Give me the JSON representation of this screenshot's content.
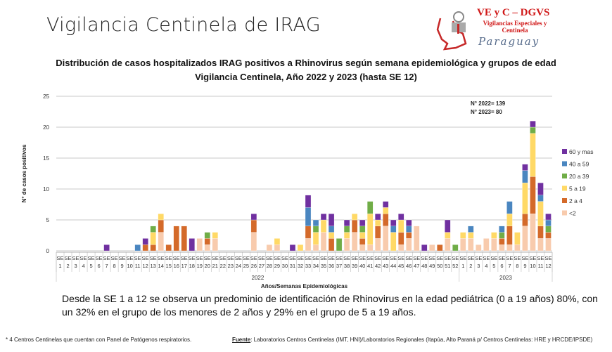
{
  "header": {
    "title": "Vigilancia Centinela de IRAG"
  },
  "logo": {
    "line1": "VE y C – DGVS",
    "line2": "Vigilancias Especiales y Centinela",
    "line3": "Paraguay"
  },
  "chart_data": {
    "type": "bar",
    "stacked": true,
    "title": "Distribución de casos hospitalizados IRAG positivos a Rhinovirus según semana epidemiológica y grupos de edad",
    "subtitle": "Vigilancia Centinela, Año 2022 y 2023 (hasta SE 12)",
    "ylabel": "N° de casos positivos",
    "xlabel": "Años/Semanas Epidemiológicas",
    "ylim": [
      0,
      25
    ],
    "yticks": [
      0,
      5,
      10,
      15,
      20,
      25
    ],
    "grid": true,
    "legend_position": "right",
    "annotations": [
      "N° 2022= 139",
      "N° 2023= 80"
    ],
    "groups": [
      {
        "label": "2022",
        "weeks": 52
      },
      {
        "label": "2023",
        "weeks": 12
      }
    ],
    "category_prefix": "SE",
    "categories": [
      "1",
      "2",
      "3",
      "4",
      "5",
      "6",
      "7",
      "8",
      "9",
      "10",
      "11",
      "12",
      "13",
      "14",
      "15",
      "16",
      "17",
      "18",
      "19",
      "20",
      "21",
      "22",
      "23",
      "24",
      "25",
      "26",
      "27",
      "28",
      "29",
      "30",
      "31",
      "32",
      "33",
      "34",
      "35",
      "36",
      "37",
      "38",
      "39",
      "40",
      "41",
      "42",
      "43",
      "44",
      "45",
      "46",
      "47",
      "48",
      "49",
      "50",
      "51",
      "52",
      "1",
      "2",
      "3",
      "4",
      "5",
      "6",
      "7",
      "8",
      "9",
      "10",
      "11",
      "12"
    ],
    "series": [
      {
        "name": "<2",
        "color": "#F8CBAD",
        "values": [
          0,
          0,
          0,
          0,
          0,
          0,
          0,
          0,
          0,
          0,
          0,
          0,
          0,
          3,
          0,
          0,
          0,
          0,
          2,
          1,
          2,
          0,
          0,
          0,
          0,
          3,
          0,
          1,
          1,
          0,
          0,
          0,
          2,
          1,
          3,
          0,
          0,
          2,
          3,
          1,
          1,
          2,
          4,
          0,
          1,
          2,
          4,
          0,
          1,
          0,
          2,
          0,
          2,
          2,
          1,
          2,
          2,
          1,
          1,
          1,
          4,
          6,
          2,
          2
        ]
      },
      {
        "name": "2 a 4",
        "color": "#D46A2A",
        "values": [
          0,
          0,
          0,
          0,
          0,
          0,
          0,
          0,
          0,
          0,
          0,
          1,
          1,
          2,
          1,
          4,
          4,
          0,
          0,
          1,
          0,
          0,
          0,
          0,
          0,
          2,
          0,
          0,
          0,
          0,
          0,
          0,
          2,
          0,
          0,
          2,
          0,
          0,
          2,
          1,
          0,
          2,
          2,
          0,
          2,
          1,
          0,
          0,
          0,
          1,
          0,
          0,
          0,
          0,
          0,
          0,
          0,
          1,
          3,
          0,
          2,
          6,
          2,
          1
        ]
      },
      {
        "name": "5 a 19",
        "color": "#FFD966",
        "values": [
          0,
          0,
          0,
          0,
          0,
          0,
          0,
          0,
          0,
          0,
          0,
          0,
          2,
          1,
          0,
          0,
          0,
          0,
          0,
          0,
          1,
          0,
          0,
          0,
          0,
          0,
          0,
          0,
          1,
          0,
          0,
          1,
          0,
          2,
          2,
          1,
          0,
          1,
          1,
          1,
          5,
          1,
          1,
          3,
          2,
          0,
          0,
          0,
          0,
          0,
          1,
          0,
          1,
          1,
          0,
          0,
          1,
          0,
          2,
          2,
          5,
          7,
          4,
          0
        ]
      },
      {
        "name": "20 a 39",
        "color": "#70AD47",
        "values": [
          0,
          0,
          0,
          0,
          0,
          0,
          0,
          0,
          0,
          0,
          0,
          0,
          1,
          0,
          0,
          0,
          0,
          0,
          0,
          1,
          0,
          0,
          0,
          0,
          0,
          0,
          0,
          0,
          0,
          0,
          0,
          0,
          0,
          1,
          0,
          0,
          2,
          1,
          0,
          1,
          2,
          0,
          0,
          0,
          0,
          0,
          0,
          0,
          0,
          0,
          0,
          1,
          0,
          0,
          0,
          0,
          0,
          1,
          0,
          0,
          0,
          1,
          0,
          1
        ]
      },
      {
        "name": "40 a 59",
        "color": "#4A86C0",
        "values": [
          0,
          0,
          0,
          0,
          0,
          0,
          0,
          0,
          0,
          0,
          1,
          0,
          0,
          0,
          0,
          0,
          0,
          0,
          0,
          0,
          0,
          0,
          0,
          0,
          0,
          0,
          0,
          0,
          0,
          0,
          0,
          0,
          3,
          1,
          0,
          1,
          0,
          0,
          0,
          0,
          0,
          0,
          0,
          1,
          0,
          1,
          0,
          0,
          0,
          0,
          0,
          0,
          0,
          1,
          0,
          0,
          0,
          1,
          2,
          0,
          2,
          0,
          1,
          1
        ]
      },
      {
        "name": "60 y mas",
        "color": "#7030A0",
        "values": [
          0,
          0,
          0,
          0,
          0,
          0,
          1,
          0,
          0,
          0,
          0,
          1,
          0,
          0,
          0,
          0,
          0,
          2,
          0,
          0,
          0,
          0,
          0,
          0,
          0,
          1,
          0,
          0,
          0,
          0,
          1,
          0,
          2,
          0,
          1,
          2,
          0,
          1,
          0,
          1,
          0,
          1,
          1,
          1,
          1,
          1,
          0,
          1,
          0,
          0,
          2,
          0,
          0,
          0,
          0,
          0,
          0,
          0,
          0,
          0,
          1,
          1,
          2,
          1
        ]
      }
    ]
  },
  "summary": "Desde la SE 1 a 12 se observa un predominio de identificación de Rhinovirus en la edad pediátrica (0 a 19 años) 80%, con un 32% en el grupo de los menores de 2 años y  29% en el grupo de 5 a 19 años.",
  "footer": {
    "note": "* 4 Centros Centinelas que cuentan con Panel  de Patógenos respiratorios.",
    "source_label": "Fuente",
    "source_text": ": Laboratorios Centros Centinelas (IMT, HNI)/Laboratorios Regionales (Itapúa, Alto Paraná  p/ Centros Centinelas: HRE y HRCDE/IPSDE)"
  }
}
